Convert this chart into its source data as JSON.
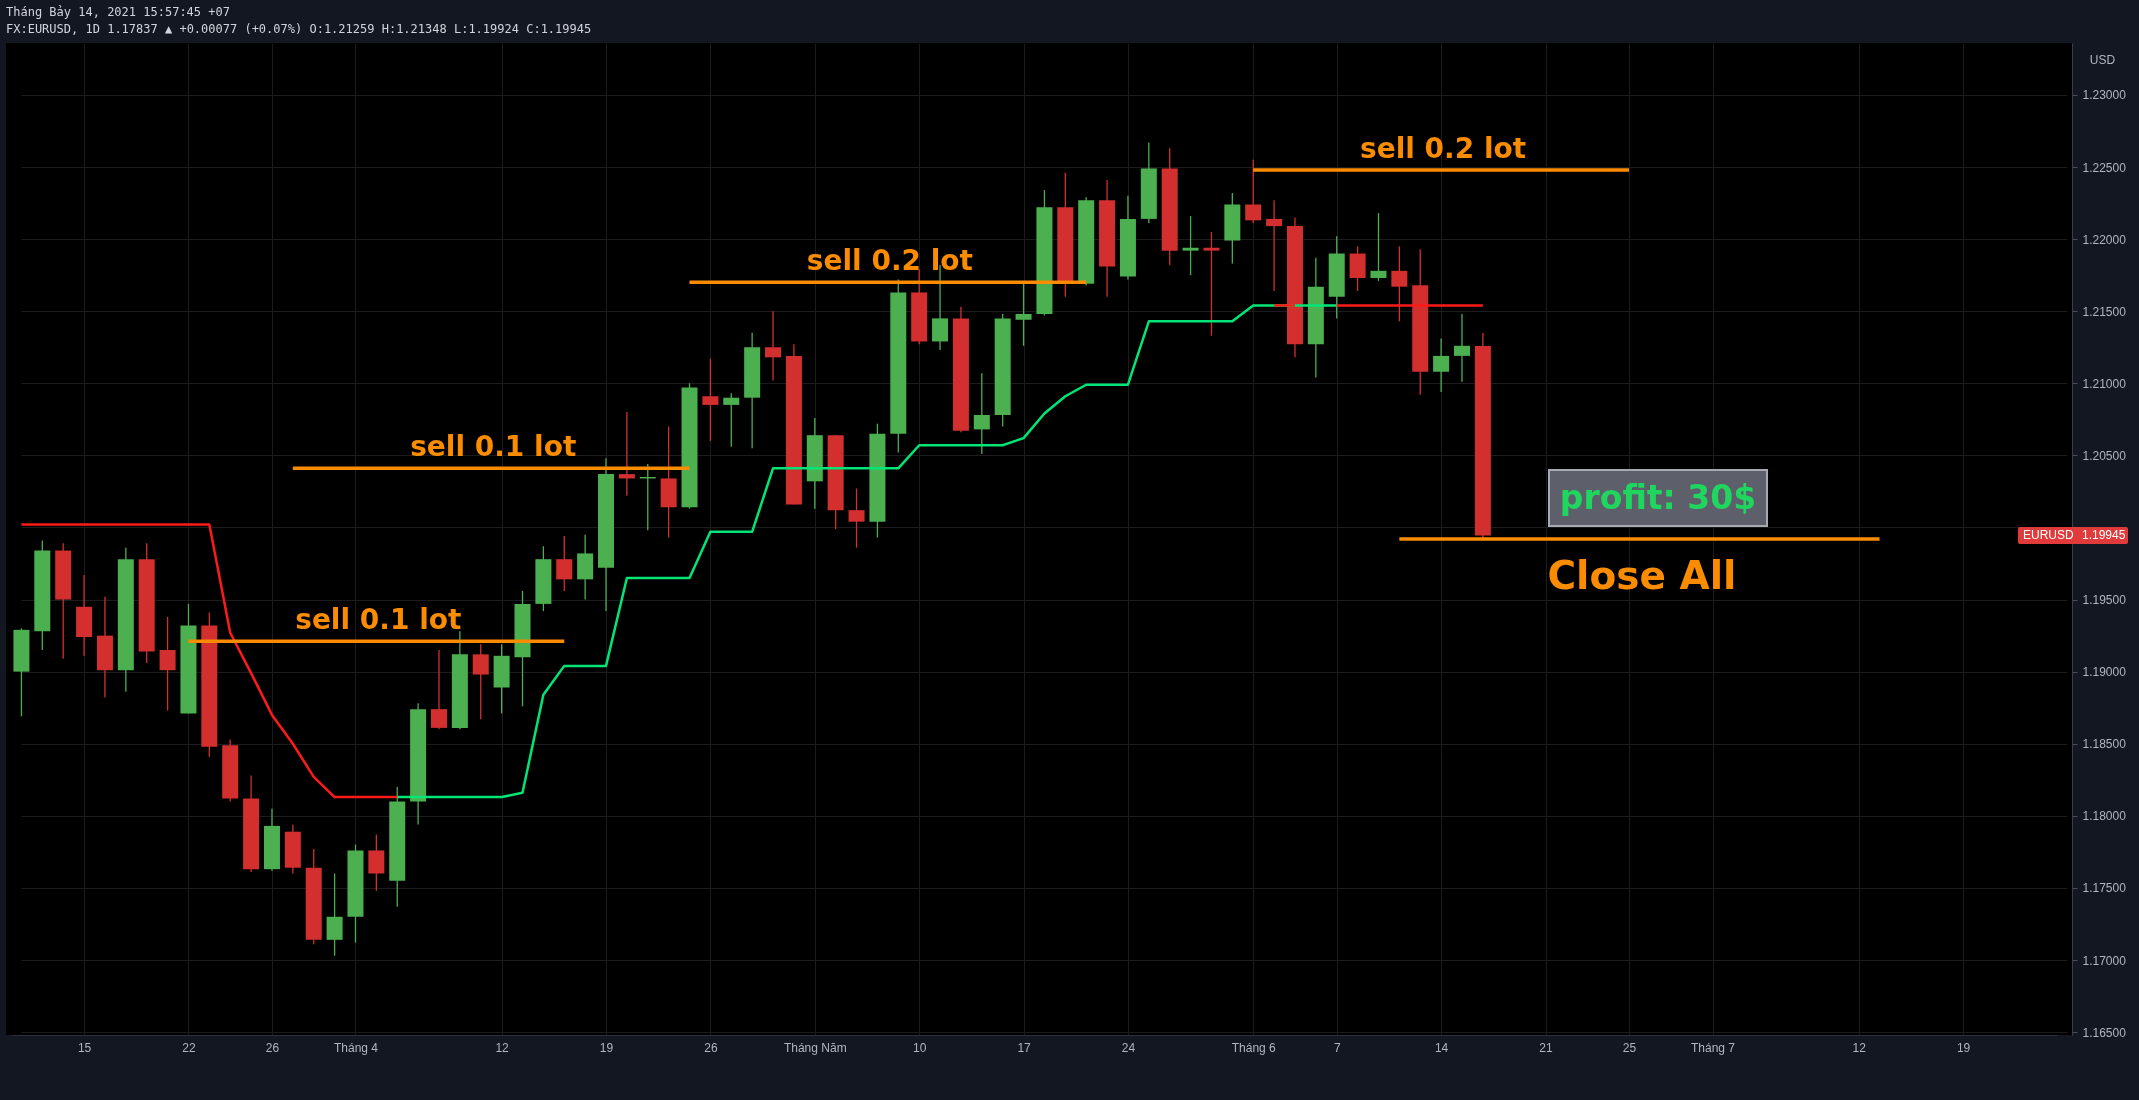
{
  "chart_data": {
    "type": "candlestick",
    "title": "FX:EURUSD, 1D",
    "subtitle": "1.17837 ▲ +0.00077 (+0.07%) O:1.21259 H:1.21348 L:1.19924 C:1.19945",
    "ylabel": "USD",
    "categories": [
      null,
      null,
      null,
      "15",
      null,
      null,
      null,
      null,
      "22",
      null,
      null,
      null,
      "26",
      null,
      null,
      null,
      "Tháng 4",
      null,
      null,
      null,
      null,
      null,
      null,
      "12",
      null,
      null,
      null,
      null,
      "19",
      null,
      null,
      null,
      null,
      "26",
      null,
      null,
      null,
      null,
      "Tháng Năm",
      null,
      null,
      null,
      null,
      "10",
      null,
      null,
      null,
      null,
      "17",
      null,
      null,
      null,
      null,
      "24",
      null,
      null,
      null,
      null,
      null,
      "Tháng 6",
      null,
      null,
      null,
      "7",
      null,
      null,
      null,
      null,
      "14",
      null,
      null,
      null,
      null,
      "21",
      null,
      null,
      null,
      "25",
      null,
      null,
      null,
      "Tháng 7",
      null,
      null,
      null,
      null,
      null,
      null,
      "12",
      null,
      null,
      null,
      null,
      "19",
      null,
      null,
      null,
      null
    ],
    "ohlc": [
      [
        1.19,
        1.193,
        1.1869,
        1.1929
      ],
      [
        1.1928,
        1.1991,
        1.1915,
        1.1984
      ],
      [
        1.1984,
        1.1989,
        1.1909,
        1.195
      ],
      [
        1.1945,
        1.1967,
        1.1911,
        1.1924
      ],
      [
        1.1925,
        1.1952,
        1.1882,
        1.1901
      ],
      [
        1.1901,
        1.1986,
        1.1886,
        1.1978
      ],
      [
        1.1978,
        1.1989,
        1.1906,
        1.1914
      ],
      [
        1.1915,
        1.1938,
        1.1873,
        1.1901
      ],
      [
        1.1871,
        1.1947,
        1.1871,
        1.1932
      ],
      [
        1.1932,
        1.1941,
        1.1841,
        1.1848
      ],
      [
        1.1849,
        1.1853,
        1.181,
        1.1812
      ],
      [
        1.1812,
        1.1828,
        1.1761,
        1.1763
      ],
      [
        1.1763,
        1.1805,
        1.1762,
        1.1793
      ],
      [
        1.1789,
        1.1794,
        1.176,
        1.1764
      ],
      [
        1.1764,
        1.1777,
        1.1711,
        1.1714
      ],
      [
        1.1714,
        1.176,
        1.1703,
        1.173
      ],
      [
        1.173,
        1.178,
        1.1712,
        1.1776
      ],
      [
        1.1776,
        1.1787,
        1.1748,
        1.176
      ],
      [
        1.1755,
        1.182,
        1.1737,
        1.181
      ],
      [
        1.181,
        1.1878,
        1.1794,
        1.1874
      ],
      [
        1.1874,
        1.1915,
        1.186,
        1.1861
      ],
      [
        1.1861,
        1.1928,
        1.186,
        1.1912
      ],
      [
        1.1912,
        1.1919,
        1.1867,
        1.1898
      ],
      [
        1.1889,
        1.1919,
        1.1871,
        1.1911
      ],
      [
        1.191,
        1.1956,
        1.1876,
        1.1947
      ],
      [
        1.1947,
        1.1987,
        1.1942,
        1.1978
      ],
      [
        1.1978,
        1.1994,
        1.1956,
        1.1964
      ],
      [
        1.1964,
        1.1995,
        1.195,
        1.1982
      ],
      [
        1.1972,
        1.2048,
        1.1942,
        1.2037
      ],
      [
        1.2037,
        1.208,
        1.2022,
        1.2034
      ],
      [
        1.2034,
        1.2044,
        1.1998,
        1.2035
      ],
      [
        1.2034,
        1.207,
        1.1993,
        1.2014
      ],
      [
        1.2014,
        1.21,
        1.2013,
        1.2097
      ],
      [
        1.2091,
        1.2117,
        1.206,
        1.2085
      ],
      [
        1.2085,
        1.2093,
        1.2056,
        1.209
      ],
      [
        1.209,
        1.2135,
        1.2055,
        1.2125
      ],
      [
        1.2125,
        1.215,
        1.2102,
        1.2118
      ],
      [
        1.2119,
        1.2127,
        1.2016,
        1.2016
      ],
      [
        1.2032,
        1.2076,
        1.2013,
        1.2064
      ],
      [
        1.2064,
        1.2064,
        1.1999,
        1.2012
      ],
      [
        1.2012,
        1.2027,
        1.1986,
        1.2004
      ],
      [
        1.2004,
        1.2072,
        1.1993,
        1.2065
      ],
      [
        1.2065,
        1.2172,
        1.2052,
        1.2163
      ],
      [
        1.2163,
        1.2179,
        1.2127,
        1.2129
      ],
      [
        1.2129,
        1.2182,
        1.2123,
        1.2145
      ],
      [
        1.2145,
        1.2153,
        1.2066,
        1.2067
      ],
      [
        1.2068,
        1.2107,
        1.2051,
        1.2078
      ],
      [
        1.2078,
        1.2148,
        1.207,
        1.2145
      ],
      [
        1.2144,
        1.217,
        1.2126,
        1.2148
      ],
      [
        1.2148,
        1.2234,
        1.2147,
        1.2222
      ],
      [
        1.2222,
        1.2246,
        1.216,
        1.2169
      ],
      [
        1.2169,
        1.2229,
        1.2168,
        1.2227
      ],
      [
        1.2227,
        1.2241,
        1.216,
        1.2181
      ],
      [
        1.2174,
        1.223,
        1.2172,
        1.2214
      ],
      [
        1.2214,
        1.2267,
        1.2211,
        1.2249
      ],
      [
        1.2249,
        1.2263,
        1.2182,
        1.2192
      ],
      [
        1.2192,
        1.2216,
        1.2175,
        1.2194
      ],
      [
        1.2194,
        1.2205,
        1.2133,
        1.2192
      ],
      [
        1.2199,
        1.2232,
        1.2183,
        1.2224
      ],
      [
        1.2224,
        1.2255,
        1.2211,
        1.2213
      ],
      [
        1.2214,
        1.2227,
        1.2164,
        1.2209
      ],
      [
        1.2209,
        1.2215,
        1.2118,
        1.2127
      ],
      [
        1.2127,
        1.2187,
        1.2104,
        1.2167
      ],
      [
        1.216,
        1.2202,
        1.2145,
        1.219
      ],
      [
        1.219,
        1.2195,
        1.2164,
        1.2173
      ],
      [
        1.2173,
        1.2218,
        1.2171,
        1.2178
      ],
      [
        1.2178,
        1.2195,
        1.2143,
        1.2167
      ],
      [
        1.2168,
        1.2193,
        1.2092,
        1.2108
      ],
      [
        1.2108,
        1.2131,
        1.2094,
        1.2119
      ],
      [
        1.2119,
        1.2148,
        1.2101,
        1.2126
      ],
      [
        1.21259,
        1.21348,
        1.19924,
        1.19945
      ],
      null,
      null,
      null,
      null,
      null,
      null,
      null,
      null,
      null,
      null,
      null,
      null,
      null,
      null,
      null,
      null,
      null,
      null,
      null,
      null,
      null,
      null,
      null,
      null,
      null,
      null,
      null
    ],
    "colors": [
      "#4caf50",
      "#4caf50",
      "#d32f2f",
      "#d32f2f",
      "#d32f2f",
      "#4caf50",
      "#d32f2f",
      "#d32f2f",
      "#4caf50",
      "#d32f2f",
      "#d32f2f",
      "#d32f2f",
      "#4caf50",
      "#d32f2f",
      "#d32f2f",
      "#4caf50",
      "#4caf50",
      "#d32f2f",
      "#4caf50",
      "#4caf50",
      "#d32f2f",
      "#4caf50",
      "#d32f2f",
      "#4caf50",
      "#4caf50",
      "#4caf50",
      "#d32f2f",
      "#4caf50",
      "#4caf50",
      "#d32f2f",
      "#4caf50",
      "#d32f2f",
      "#4caf50",
      "#d32f2f",
      "#4caf50",
      "#4caf50",
      "#d32f2f",
      "#d32f2f",
      "#4caf50",
      "#d32f2f",
      "#d32f2f",
      "#4caf50",
      "#4caf50",
      "#d32f2f",
      "#4caf50",
      "#d32f2f",
      "#4caf50",
      "#4caf50",
      "#4caf50",
      "#4caf50",
      "#d32f2f",
      "#4caf50",
      "#d32f2f",
      "#4caf50",
      "#4caf50",
      "#d32f2f",
      "#4caf50",
      "#d32f2f",
      "#4caf50",
      "#d32f2f",
      "#d32f2f",
      "#d32f2f",
      "#4caf50",
      "#4caf50",
      "#d32f2f",
      "#4caf50",
      "#d32f2f",
      "#d32f2f",
      "#4caf50",
      "#4caf50",
      "#d32f2f",
      null,
      null,
      null,
      null,
      null,
      null,
      null,
      null,
      null,
      null,
      null,
      null,
      null,
      null,
      null,
      null,
      null,
      null,
      null,
      null,
      null,
      null,
      null,
      null,
      null,
      null,
      null
    ],
    "series": [
      {
        "type": "line",
        "color": "#00e676",
        "values": [
          null,
          null,
          null,
          null,
          null,
          null,
          null,
          null,
          null,
          null,
          null,
          null,
          null,
          null,
          null,
          null,
          null,
          null,
          1.1813,
          1.1813,
          1.1813,
          1.1813,
          1.1813,
          1.1813,
          1.1816,
          1.1884,
          1.1904,
          1.1904,
          1.1904,
          1.1965,
          1.1965,
          1.1965,
          1.1965,
          1.1997,
          1.1997,
          1.1997,
          1.2041,
          1.2041,
          1.2041,
          1.2041,
          1.2041,
          1.2041,
          1.2041,
          1.2057,
          1.2057,
          1.2057,
          1.2057,
          1.2057,
          1.2062,
          1.2079,
          1.2091,
          1.2099,
          1.2099,
          1.2099,
          1.2143,
          1.2143,
          1.2143,
          1.2143,
          1.2143,
          1.2154,
          1.2154,
          1.2154,
          1.2154,
          1.2154,
          null,
          null,
          null,
          null,
          null,
          null,
          null,
          null,
          null,
          null,
          null,
          null,
          null,
          null,
          null,
          null,
          null,
          null,
          null,
          null,
          null,
          null,
          null,
          null,
          null,
          null,
          null,
          null,
          null,
          null,
          null,
          null,
          null,
          null
        ]
      },
      {
        "type": "line",
        "color": "#ff1a1a",
        "values": [
          1.2002,
          1.2002,
          1.2002,
          1.2002,
          1.2002,
          1.2002,
          1.2002,
          1.2002,
          1.2002,
          1.2002,
          1.1927,
          1.1899,
          1.187,
          1.185,
          1.1827,
          1.1813,
          1.1813,
          1.1813,
          1.1813,
          null,
          null,
          null,
          null,
          null,
          null,
          null,
          null,
          null,
          null,
          null,
          null,
          null,
          null,
          null,
          null,
          null,
          null,
          null,
          null,
          null,
          null,
          null,
          null,
          null,
          null,
          null,
          null,
          null,
          null,
          null,
          null,
          null,
          null,
          null,
          null,
          null,
          null,
          null,
          null,
          null,
          1.2154,
          1.2154,
          null,
          1.2154,
          1.2154,
          1.2154,
          1.2154,
          1.2154,
          1.2154,
          1.2154,
          1.2154,
          null,
          null,
          null,
          null,
          null,
          null,
          null,
          null,
          null,
          null,
          null,
          null,
          null,
          null,
          null,
          null,
          null,
          null,
          null,
          null,
          null,
          null,
          null,
          null,
          null,
          null,
          null
        ]
      },
      {
        "type": "line",
        "name": "sell 0.1 lot",
        "color": "#fb8c00",
        "values": [
          null,
          null,
          null,
          null,
          null,
          null,
          null,
          null,
          1.1921,
          1.1921,
          1.1921,
          1.1921,
          1.1921,
          1.1921,
          1.1921,
          1.1921,
          1.1921,
          1.1921,
          1.1921,
          1.1921,
          1.1921,
          1.1921,
          1.1921,
          1.1921,
          1.1921,
          1.1921,
          1.1921,
          null,
          null,
          null,
          null,
          null,
          null,
          null,
          null,
          null,
          null,
          null,
          null,
          null,
          null,
          null,
          null,
          null,
          null,
          null,
          null,
          null,
          null,
          null,
          null,
          null,
          null,
          null,
          null,
          null,
          null,
          null,
          null,
          null,
          null,
          null,
          null,
          null,
          null,
          null,
          null,
          null,
          null,
          null,
          null,
          null,
          null,
          null,
          null,
          null,
          null,
          null,
          null,
          null,
          null,
          null,
          null,
          null,
          null,
          null,
          null,
          null,
          null,
          null,
          null,
          null,
          null,
          null,
          null,
          null,
          null,
          null
        ]
      },
      {
        "type": "line",
        "name": "sell 0.1 lot",
        "color": "#fb8c00",
        "values": [
          null,
          null,
          null,
          null,
          null,
          null,
          null,
          null,
          null,
          null,
          null,
          null,
          null,
          1.2041,
          1.2041,
          1.2041,
          1.2041,
          1.2041,
          1.2041,
          1.2041,
          1.2041,
          1.2041,
          1.2041,
          1.2041,
          1.2041,
          1.2041,
          1.2041,
          1.2041,
          1.2041,
          1.2041,
          1.2041,
          1.2041,
          1.2041,
          null,
          null,
          null,
          null,
          null,
          null,
          null,
          null,
          null,
          null,
          null,
          null,
          null,
          null,
          null,
          null,
          null,
          null,
          null,
          null,
          null,
          null,
          null,
          null,
          null,
          null,
          null,
          null,
          null,
          null,
          null,
          null,
          null,
          null,
          null,
          null,
          null,
          null,
          null,
          null,
          null,
          null,
          null,
          null,
          null,
          null,
          null,
          null,
          null,
          null,
          null,
          null,
          null,
          null,
          null,
          null,
          null,
          null,
          null,
          null,
          null,
          null,
          null,
          null,
          null
        ]
      },
      {
        "type": "line",
        "name": "sell 0.2 lot",
        "color": "#fb8c00",
        "values": [
          null,
          null,
          null,
          null,
          null,
          null,
          null,
          null,
          null,
          null,
          null,
          null,
          null,
          null,
          null,
          null,
          null,
          null,
          null,
          null,
          null,
          null,
          null,
          null,
          null,
          null,
          null,
          null,
          null,
          null,
          null,
          null,
          1.217,
          1.217,
          1.217,
          1.217,
          1.217,
          1.217,
          1.217,
          1.217,
          1.217,
          1.217,
          1.217,
          1.217,
          1.217,
          1.217,
          1.217,
          1.217,
          1.217,
          1.217,
          1.217,
          1.217,
          null,
          null,
          null,
          null,
          null,
          null,
          null,
          null,
          null,
          null,
          null,
          null,
          null,
          null,
          null,
          null,
          null,
          null,
          null,
          null,
          null,
          null,
          null,
          null,
          null,
          null,
          null,
          null,
          null,
          null,
          null,
          null,
          null,
          null,
          null,
          null,
          null,
          null,
          null,
          null,
          null,
          null,
          null,
          null,
          null,
          null
        ]
      },
      {
        "type": "line",
        "name": "sell 0.2 lot",
        "color": "#fb8c00",
        "values": [
          null,
          null,
          null,
          null,
          null,
          null,
          null,
          null,
          null,
          null,
          null,
          null,
          null,
          null,
          null,
          null,
          null,
          null,
          null,
          null,
          null,
          null,
          null,
          null,
          null,
          null,
          null,
          null,
          null,
          null,
          null,
          null,
          null,
          null,
          null,
          null,
          null,
          null,
          null,
          null,
          null,
          null,
          null,
          null,
          null,
          null,
          null,
          null,
          null,
          null,
          null,
          null,
          null,
          null,
          null,
          null,
          null,
          null,
          null,
          1.2248,
          1.2248,
          1.2248,
          1.2248,
          1.2248,
          1.2248,
          1.2248,
          1.2248,
          1.2248,
          1.2248,
          1.2248,
          1.2248,
          1.2248,
          1.2248,
          1.2248,
          1.2248,
          1.2248,
          1.2248,
          1.2248,
          null,
          null,
          null,
          null,
          null,
          null,
          null,
          null,
          null,
          null,
          null,
          null,
          null,
          null,
          null,
          null,
          null,
          null,
          null,
          null
        ]
      },
      {
        "type": "line",
        "name": "Close All",
        "color": "#fb8c00",
        "values": [
          null,
          null,
          null,
          null,
          null,
          null,
          null,
          null,
          null,
          null,
          null,
          null,
          null,
          null,
          null,
          null,
          null,
          null,
          null,
          null,
          null,
          null,
          null,
          null,
          null,
          null,
          null,
          null,
          null,
          null,
          null,
          null,
          null,
          null,
          null,
          null,
          null,
          null,
          null,
          null,
          null,
          null,
          null,
          null,
          null,
          null,
          null,
          null,
          null,
          null,
          null,
          null,
          null,
          null,
          null,
          null,
          null,
          null,
          null,
          null,
          null,
          null,
          null,
          null,
          null,
          null,
          1.1992,
          1.1992,
          1.1992,
          1.1992,
          1.1992,
          1.1992,
          1.1992,
          1.1992,
          1.1992,
          1.1992,
          1.1992,
          1.1992,
          1.1992,
          1.1992,
          1.1992,
          1.1992,
          1.1992,
          1.1992,
          1.1992,
          1.1992,
          1.1992,
          1.1992,
          1.1992,
          1.1992,
          null,
          null,
          null,
          null,
          null,
          null,
          null,
          null
        ]
      }
    ],
    "ylim": [
      1.1648,
      1.2336
    ],
    "yticks": [
      {
        "value": 1.165,
        "label": "1.16500"
      },
      {
        "value": 1.17,
        "label": "1.17000"
      },
      {
        "value": 1.175,
        "label": "1.17500"
      },
      {
        "value": 1.18,
        "label": "1.18000"
      },
      {
        "value": 1.185,
        "label": "1.18500"
      },
      {
        "value": 1.19,
        "label": "1.19000"
      },
      {
        "value": 1.195,
        "label": "1.19500"
      },
      {
        "value": 1.2,
        "label": null
      },
      {
        "value": 1.205,
        "label": "1.20500"
      },
      {
        "value": 1.21,
        "label": "1.21000"
      },
      {
        "value": 1.215,
        "label": "1.21500"
      },
      {
        "value": 1.22,
        "label": "1.22000"
      },
      {
        "value": 1.225,
        "label": "1.22500"
      },
      {
        "value": 1.23,
        "label": "1.23000"
      }
    ],
    "grid": true,
    "annotations": [
      "Tháng Bảy 14, 2021 15:57:45 +07",
      "profit: 30$",
      "EURUSD",
      "1.19945"
    ]
  }
}
